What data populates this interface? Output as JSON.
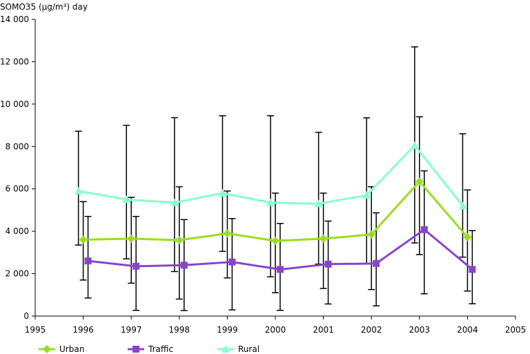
{
  "chart_data": {
    "type": "line",
    "ylabel": "SOMO35 (µg/m³) day",
    "xlim": [
      1995,
      2005
    ],
    "ylim": [
      0,
      14000
    ],
    "x_ticks": [
      {
        "value": 1995,
        "label": "1995"
      },
      {
        "value": 1996,
        "label": "1996"
      },
      {
        "value": 1997,
        "label": "1997"
      },
      {
        "value": 1998,
        "label": "1998"
      },
      {
        "value": 1999,
        "label": "1999"
      },
      {
        "value": 2000,
        "label": "2000"
      },
      {
        "value": 2001,
        "label": "2001"
      },
      {
        "value": 2002,
        "label": "2002"
      },
      {
        "value": 2003,
        "label": "2003"
      },
      {
        "value": 2004,
        "label": "2004"
      },
      {
        "value": 2005,
        "label": "2005"
      }
    ],
    "y_ticks": [
      {
        "value": 0,
        "label": "0"
      },
      {
        "value": 2000,
        "label": "2 000"
      },
      {
        "value": 4000,
        "label": "4 000"
      },
      {
        "value": 6000,
        "label": "6 000"
      },
      {
        "value": 8000,
        "label": "8 000"
      },
      {
        "value": 10000,
        "label": "10 000"
      },
      {
        "value": 12000,
        "label": "12 000"
      },
      {
        "value": 14000,
        "label": "14 000"
      }
    ],
    "grid": false,
    "legend_position": "bottom",
    "series": [
      {
        "name": "Urban",
        "color": "#99dd22",
        "marker": "diamond",
        "x": [
          1996.0,
          1997.0,
          1998.0,
          1999.0,
          2000.0,
          2001.0,
          2002.0,
          2003.0,
          2004.0
        ],
        "values": [
          3600,
          3650,
          3580,
          3900,
          3550,
          3650,
          3850,
          6350,
          3720
        ],
        "err_low": [
          1700,
          1550,
          800,
          1800,
          1100,
          1300,
          1250,
          2900,
          1180
        ],
        "err_high": [
          5400,
          5600,
          6100,
          5900,
          5800,
          5800,
          6100,
          9400,
          5950
        ]
      },
      {
        "name": "Traffic",
        "color": "#8844cc",
        "marker": "square",
        "x": [
          1996.1,
          1997.1,
          1998.1,
          1999.1,
          2000.1,
          2001.1,
          2002.1,
          2003.1,
          2004.1
        ],
        "values": [
          2600,
          2350,
          2400,
          2550,
          2200,
          2450,
          2480,
          4080,
          2200
        ],
        "err_low": [
          850,
          270,
          260,
          290,
          270,
          570,
          480,
          1050,
          580
        ],
        "err_high": [
          4700,
          4700,
          4550,
          4600,
          4370,
          4480,
          4870,
          6850,
          4030
        ]
      },
      {
        "name": "Rural",
        "color": "#88ffcc",
        "marker": "triangle",
        "x": [
          1995.9,
          1996.9,
          1997.9,
          1998.9,
          1999.9,
          2000.9,
          2001.9,
          2002.9,
          2003.9
        ],
        "values": [
          5900,
          5500,
          5350,
          5800,
          5350,
          5300,
          5700,
          8050,
          5200
        ],
        "err_low": [
          3350,
          2700,
          2100,
          3050,
          1850,
          2450,
          2450,
          3450,
          2780
        ],
        "err_high": [
          8720,
          9000,
          9360,
          9450,
          9450,
          8670,
          9350,
          12700,
          8600
        ]
      }
    ]
  }
}
